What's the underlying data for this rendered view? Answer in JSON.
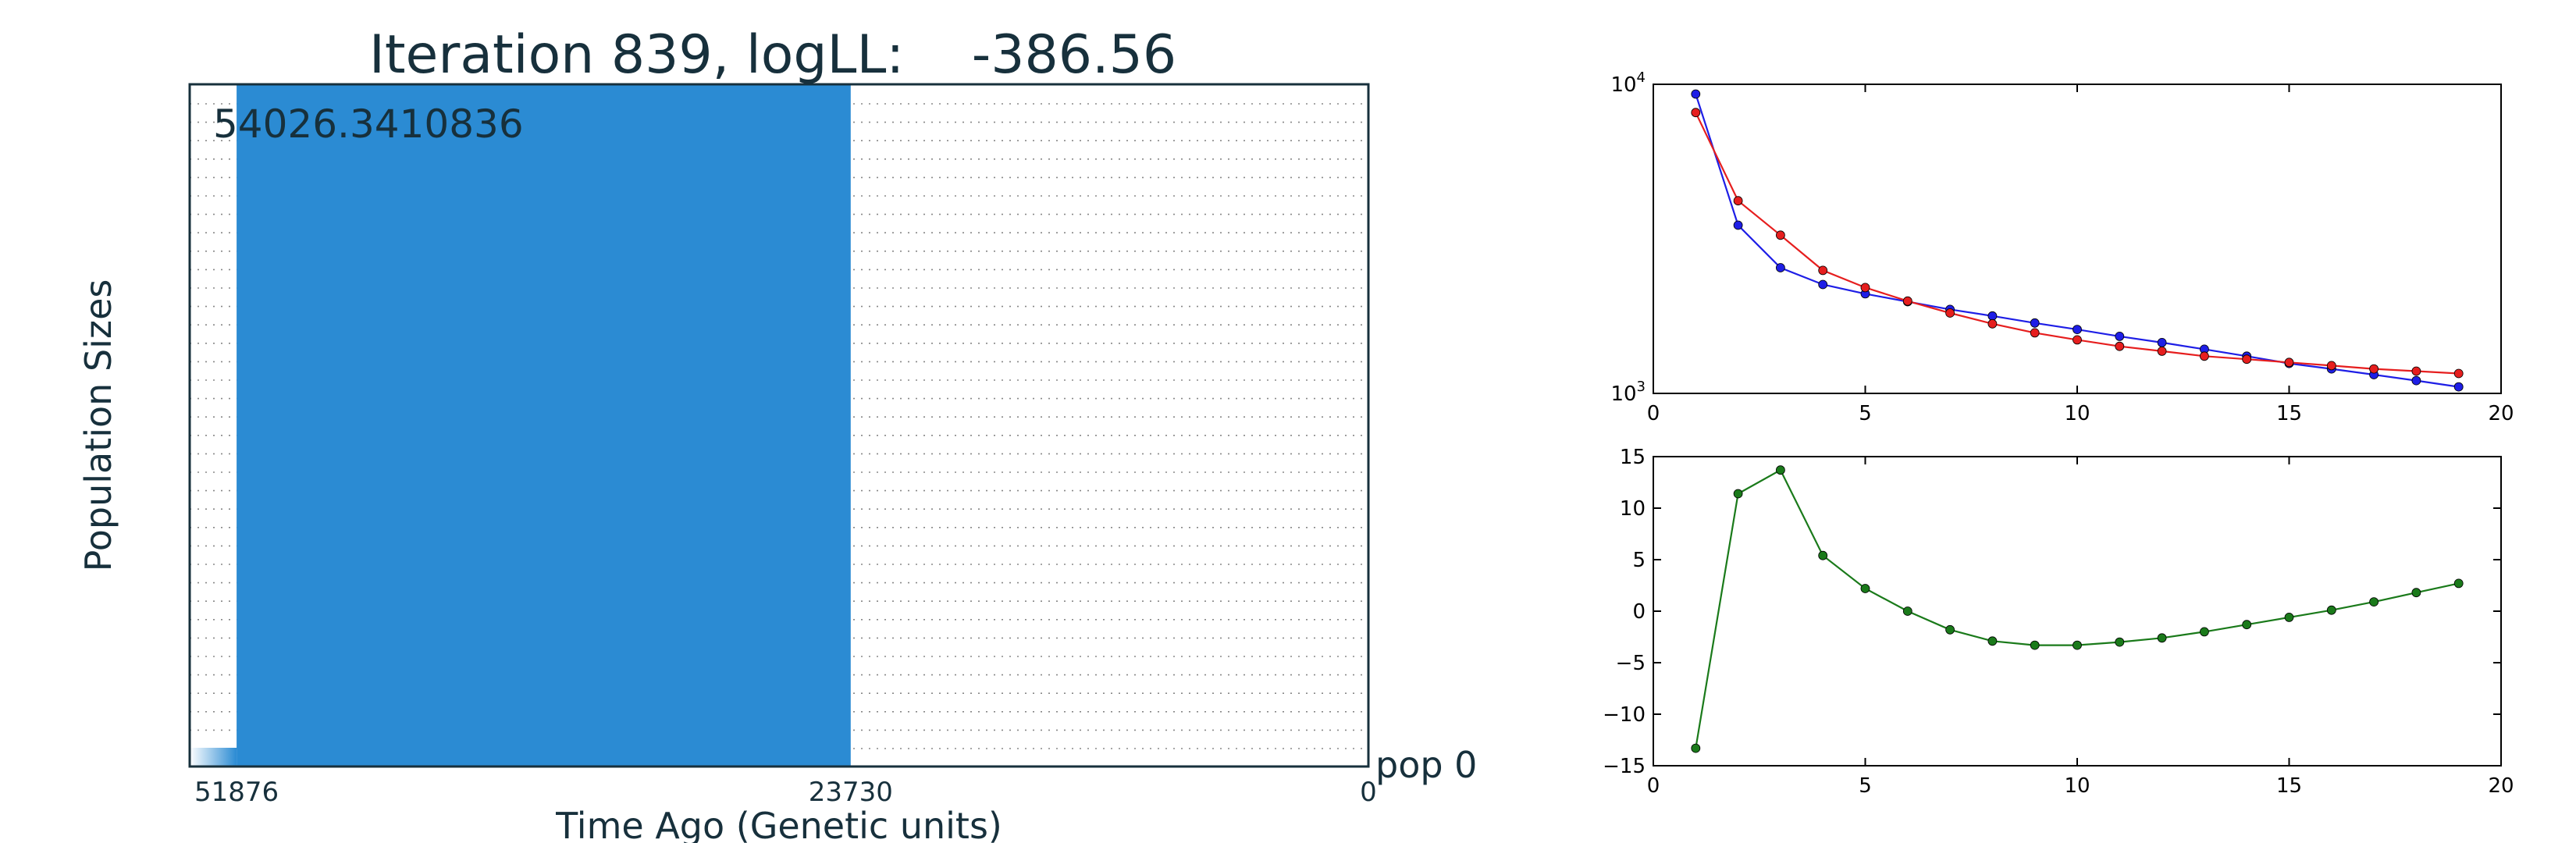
{
  "colors": {
    "ink": "#17303c",
    "fill": "#2b8bd3",
    "blue_series": "#1e1ee6",
    "red_series": "#e61e1e",
    "green_series": "#1a7a1a",
    "grid_dots": "#888888"
  },
  "chart_data": [
    {
      "type": "area",
      "title": "Iteration 839, logLL:    -386.56",
      "xlabel": "Time Ago (Genetic units)",
      "ylabel": "Population Sizes",
      "x_ticks": [
        "51876",
        "23730",
        "0"
      ],
      "x_reversed": true,
      "xlim": [
        54026.3410836,
        0
      ],
      "grid": "dotted horizontal",
      "annotations": [
        "54026.3410836",
        "pop 0"
      ],
      "series": [
        {
          "from": 51876,
          "to": 23730,
          "relative_size": 1.0
        },
        {
          "from": 54026.3410836,
          "to": 51876,
          "relative_size": 0.03
        }
      ]
    },
    {
      "type": "line",
      "y_scale": "log",
      "ylim": [
        1000,
        10000
      ],
      "xlim": [
        0,
        20
      ],
      "x_ticks": [
        "0",
        "5",
        "10",
        "15",
        "20"
      ],
      "y_ticks": [
        "10^3",
        "10^4"
      ],
      "x": [
        1,
        2,
        3,
        4,
        5,
        6,
        7,
        8,
        9,
        10,
        11,
        12,
        13,
        14,
        15,
        16,
        17,
        18,
        19
      ],
      "series": [
        {
          "color": "blue",
          "values": [
            9300,
            3500,
            2550,
            2250,
            2100,
            1980,
            1870,
            1780,
            1690,
            1610,
            1530,
            1460,
            1390,
            1320,
            1250,
            1200,
            1150,
            1100,
            1050
          ]
        },
        {
          "color": "red",
          "values": [
            8100,
            4200,
            3250,
            2500,
            2200,
            1990,
            1820,
            1680,
            1570,
            1490,
            1420,
            1370,
            1320,
            1290,
            1260,
            1230,
            1200,
            1180,
            1160
          ]
        }
      ]
    },
    {
      "type": "line",
      "ylim": [
        -15,
        15
      ],
      "xlim": [
        0,
        20
      ],
      "x_ticks": [
        "0",
        "5",
        "10",
        "15",
        "20"
      ],
      "y_ticks": [
        "15",
        "10",
        "5",
        "0",
        "−5",
        "−10",
        "−15"
      ],
      "x": [
        1,
        2,
        3,
        4,
        5,
        6,
        7,
        8,
        9,
        10,
        11,
        12,
        13,
        14,
        15,
        16,
        17,
        18,
        19
      ],
      "series": [
        {
          "color": "green",
          "values": [
            -13.3,
            11.4,
            13.7,
            5.4,
            2.2,
            0.0,
            -1.8,
            -2.9,
            -3.3,
            -3.3,
            -3.0,
            -2.6,
            -2.0,
            -1.3,
            -0.6,
            0.1,
            0.9,
            1.8,
            2.7
          ]
        }
      ]
    }
  ]
}
